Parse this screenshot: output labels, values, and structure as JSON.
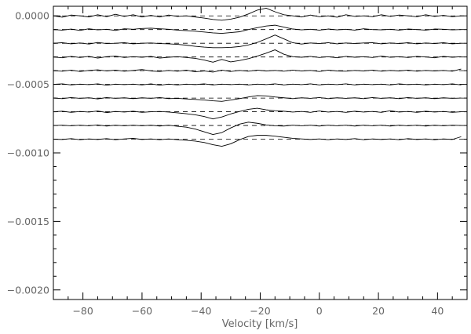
{
  "chart_data": {
    "type": "line",
    "title": "",
    "xlabel": "Velocity [km/s]",
    "ylabel": "",
    "xlim": [
      -90,
      50
    ],
    "ylim": [
      -0.00207,
      7e-05
    ],
    "x_ticks": [
      -80,
      -60,
      -40,
      -20,
      0,
      20,
      40
    ],
    "x_tick_labels": [
      "−80",
      "−60",
      "−40",
      "−20",
      "0",
      "20",
      "40"
    ],
    "y_ticks": [
      0.0,
      -0.0005,
      -0.001,
      -0.0015,
      -0.002
    ],
    "y_tick_labels": [
      "0.0000",
      "−0.0005",
      "−0.0010",
      "−0.0015",
      "−0.0020"
    ],
    "grid": false,
    "legend": "none",
    "baseline_style": "dashed",
    "baselines": [
      0.0,
      -0.0001,
      -0.0002,
      -0.0003,
      -0.0004,
      -0.0005,
      -0.0006,
      -0.0007,
      -0.0008,
      -0.0009
    ],
    "x": [
      -90,
      -87,
      -84,
      -81,
      -78,
      -75,
      -72,
      -69,
      -66,
      -63,
      -60,
      -57,
      -54,
      -51,
      -48,
      -45,
      -42,
      -39,
      -36,
      -33,
      -30,
      -27,
      -24,
      -21,
      -18,
      -15,
      -12,
      -9,
      -6,
      -3,
      0,
      3,
      6,
      9,
      12,
      15,
      18,
      21,
      24,
      27,
      30,
      33,
      36,
      39,
      42,
      45,
      48
    ],
    "series": [
      {
        "values": [
          0.0,
          -1e-05,
          6e-06,
          0.0,
          -8e-06,
          8e-06,
          -6e-06,
          1.2e-05,
          -4e-06,
          8e-06,
          -8e-06,
          4e-06,
          -8e-06,
          6e-06,
          -4e-06,
          0.0,
          -8e-06,
          -1.6e-05,
          -2.6e-05,
          -3.2e-05,
          -2.4e-05,
          -1e-05,
          1.4e-05,
          4.2e-05,
          5.6e-05,
          3e-05,
          8e-06,
          0.0,
          -8e-06,
          6e-06,
          -6e-06,
          0.0,
          -1e-05,
          8e-06,
          -4e-06,
          0.0,
          -6e-06,
          8e-06,
          -4e-06,
          6e-06,
          0.0,
          -6e-06,
          8e-06,
          -4e-06,
          4e-06,
          -6e-06,
          0.0
        ]
      },
      {
        "values": [
          -0.0001,
          -0.000104,
          -9.6e-05,
          -0.000106,
          -9.4e-05,
          -0.000102,
          -9.8e-05,
          -0.000106,
          -9.4e-05,
          -9.8e-05,
          -9.2e-05,
          -9e-05,
          -9.4e-05,
          -9.8e-05,
          -0.000104,
          -0.000108,
          -0.000112,
          -0.000118,
          -0.000124,
          -0.000128,
          -0.000122,
          -0.000116,
          -0.0001,
          -8.6e-05,
          -7.4e-05,
          -6.8e-05,
          -8.2e-05,
          -9.6e-05,
          -0.000102,
          -9.8e-05,
          -0.000104,
          -9.6e-05,
          -0.000102,
          -9.8e-05,
          -0.000104,
          -9.4e-05,
          -0.0001,
          -0.000102,
          -9.8e-05,
          -0.000104,
          -9.6e-05,
          -0.0001,
          -0.000104,
          -9.6e-05,
          -9.8e-05,
          -0.000102,
          -0.0001
        ]
      },
      {
        "values": [
          -0.0002,
          -0.000196,
          -0.000204,
          -0.000198,
          -0.000206,
          -0.000194,
          -0.000202,
          -0.0002,
          -0.000196,
          -0.000204,
          -0.0002,
          -0.000198,
          -0.000202,
          -0.000204,
          -0.000208,
          -0.000214,
          -0.000222,
          -0.000228,
          -0.000232,
          -0.000232,
          -0.00023,
          -0.000224,
          -0.000212,
          -0.000194,
          -0.000168,
          -0.00014,
          -0.000168,
          -0.000196,
          -0.000206,
          -0.000198,
          -0.000202,
          -0.000196,
          -0.000204,
          -0.000198,
          -0.000202,
          -0.000198,
          -0.000196,
          -0.000204,
          -0.000198,
          -0.000202,
          -0.000196,
          -0.000204,
          -0.000198,
          -0.000202,
          -0.000196,
          -0.000204,
          -0.0002
        ]
      },
      {
        "values": [
          -0.0003,
          -0.000306,
          -0.000296,
          -0.000304,
          -0.000296,
          -0.000308,
          -0.000298,
          -0.000294,
          -0.000304,
          -0.000298,
          -0.000302,
          -0.000296,
          -0.000308,
          -0.000302,
          -0.000298,
          -0.000304,
          -0.00031,
          -0.000322,
          -0.000338,
          -0.000318,
          -0.000336,
          -0.000326,
          -0.000312,
          -0.000294,
          -0.000272,
          -0.000248,
          -0.00028,
          -0.000298,
          -0.000302,
          -0.000296,
          -0.000304,
          -0.000298,
          -0.000306,
          -0.000296,
          -0.000302,
          -0.000298,
          -0.000304,
          -0.000294,
          -0.000302,
          -0.000298,
          -0.000304,
          -0.000296,
          -0.0003,
          -0.000306,
          -0.000296,
          -0.000302,
          -0.000298
        ]
      },
      {
        "values": [
          -0.0004,
          -0.000404,
          -0.000396,
          -0.000406,
          -0.000398,
          -0.000394,
          -0.000402,
          -0.000396,
          -0.000404,
          -0.000398,
          -0.000392,
          -0.000402,
          -0.000406,
          -0.000398,
          -0.000404,
          -0.000396,
          -0.000408,
          -0.000402,
          -0.00041,
          -0.000396,
          -0.000406,
          -0.000398,
          -0.000404,
          -0.000396,
          -0.000402,
          -0.000398,
          -0.000404,
          -0.000396,
          -0.000402,
          -0.000398,
          -0.000406,
          -0.000396,
          -0.000402,
          -0.000404,
          -0.000398,
          -0.000402,
          -0.000396,
          -0.000404,
          -0.000398,
          -0.000402,
          -0.000396,
          -0.000404,
          -0.000398,
          -0.000402,
          -0.000398,
          -0.000404,
          -0.000388
        ]
      },
      {
        "values": [
          -0.0005,
          -0.000496,
          -0.000504,
          -0.000498,
          -0.000502,
          -0.000496,
          -0.000506,
          -0.000498,
          -0.000502,
          -0.000498,
          -0.000504,
          -0.000496,
          -0.000506,
          -0.000498,
          -0.000504,
          -0.000498,
          -0.000502,
          -0.000496,
          -0.000504,
          -0.000498,
          -0.000502,
          -0.000498,
          -0.000504,
          -0.000498,
          -0.000502,
          -0.000496,
          -0.000504,
          -0.000498,
          -0.000502,
          -0.000496,
          -0.000504,
          -0.000498,
          -0.000502,
          -0.000496,
          -0.000504,
          -0.000498,
          -0.000502,
          -0.000498,
          -0.000504,
          -0.000496,
          -0.000502,
          -0.000498,
          -0.000504,
          -0.000498,
          -0.000502,
          -0.000496,
          -0.000504
        ]
      },
      {
        "values": [
          -0.0006,
          -0.000604,
          -0.000596,
          -0.000602,
          -0.000598,
          -0.000606,
          -0.000596,
          -0.000602,
          -0.000598,
          -0.000604,
          -0.000598,
          -0.000602,
          -0.000596,
          -0.000604,
          -0.000602,
          -0.000606,
          -0.00061,
          -0.000614,
          -0.00062,
          -0.000624,
          -0.000614,
          -0.000604,
          -0.000592,
          -0.000582,
          -0.000584,
          -0.000592,
          -0.000598,
          -0.000604,
          -0.000598,
          -0.000602,
          -0.000596,
          -0.000604,
          -0.000598,
          -0.000602,
          -0.000598,
          -0.000604,
          -0.000596,
          -0.000602,
          -0.000598,
          -0.000604,
          -0.000596,
          -0.000602,
          -0.000598,
          -0.000604,
          -0.000598,
          -0.000602,
          -0.0006
        ]
      },
      {
        "values": [
          -0.0007,
          -0.000696,
          -0.000704,
          -0.000698,
          -0.000702,
          -0.000694,
          -0.000706,
          -0.000698,
          -0.000702,
          -0.000696,
          -0.000704,
          -0.0007,
          -0.000698,
          -0.000702,
          -0.000708,
          -0.000714,
          -0.000722,
          -0.000734,
          -0.000752,
          -0.000738,
          -0.000716,
          -0.000698,
          -0.000682,
          -0.000674,
          -0.000686,
          -0.000692,
          -0.000696,
          -0.000702,
          -0.000698,
          -0.000704,
          -0.000694,
          -0.000702,
          -0.000698,
          -0.000704,
          -0.000696,
          -0.000702,
          -0.000698,
          -0.000704,
          -0.000692,
          -0.000702,
          -0.000698,
          -0.000704,
          -0.000696,
          -0.000702,
          -0.000698,
          -0.000704,
          -0.0007
        ]
      },
      {
        "values": [
          -0.0008,
          -0.000798,
          -0.000802,
          -0.000798,
          -0.000802,
          -0.000796,
          -0.000804,
          -0.000798,
          -0.000802,
          -0.000798,
          -0.000802,
          -0.000798,
          -0.000804,
          -0.000798,
          -0.000806,
          -0.000812,
          -0.000826,
          -0.000846,
          -0.000866,
          -0.000852,
          -0.000818,
          -0.00079,
          -0.000776,
          -0.000784,
          -0.000796,
          -0.000802,
          -0.000804,
          -0.000798,
          -0.000802,
          -0.000798,
          -0.000804,
          -0.000798,
          -0.000802,
          -0.000798,
          -0.000804,
          -0.000798,
          -0.000802,
          -0.000798,
          -0.000804,
          -0.000798,
          -0.000802,
          -0.000798,
          -0.000804,
          -0.000798,
          -0.000802,
          -0.000798,
          -0.0008
        ]
      },
      {
        "values": [
          -0.0009,
          -0.000902,
          -0.000896,
          -0.000904,
          -0.000898,
          -0.000902,
          -0.000896,
          -0.000904,
          -0.000898,
          -0.000894,
          -0.000902,
          -0.000898,
          -0.000904,
          -0.000898,
          -0.000904,
          -0.000908,
          -0.000914,
          -0.000924,
          -0.00094,
          -0.000952,
          -0.000934,
          -0.000904,
          -0.00088,
          -0.000872,
          -0.000872,
          -0.000878,
          -0.000886,
          -0.000894,
          -0.000898,
          -0.000902,
          -0.000898,
          -0.000904,
          -0.000898,
          -0.000902,
          -0.000896,
          -0.000904,
          -0.000898,
          -0.000902,
          -0.000898,
          -0.000904,
          -0.000896,
          -0.000902,
          -0.000898,
          -0.000904,
          -0.000898,
          -0.000902,
          -0.000882
        ]
      }
    ]
  }
}
